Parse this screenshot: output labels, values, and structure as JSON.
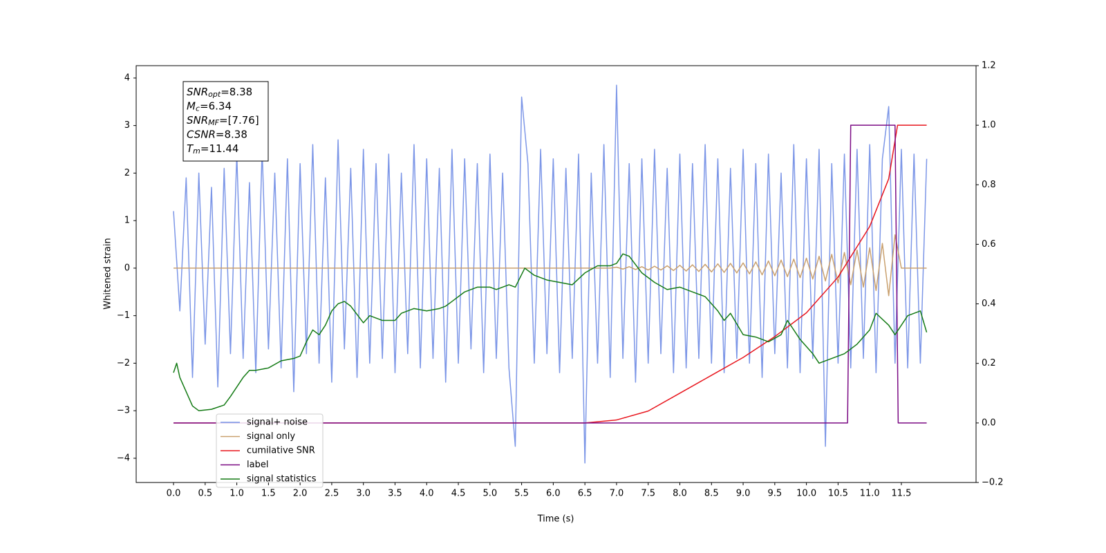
{
  "chart_data": {
    "type": "line",
    "xlabel": "Time (s)",
    "ylabel": "Whitened strain",
    "xlim": [
      -0.59,
      12.68
    ],
    "ylim": [
      -4.51,
      4.26
    ],
    "y2lim": [
      -0.2,
      1.2
    ],
    "xticks": [
      {
        "value": 0,
        "label": "0.0"
      },
      0.5,
      {
        "value": 1,
        "label": "1.0"
      },
      1.5,
      {
        "value": 2,
        "label": "2.0"
      },
      2.5,
      {
        "value": 3,
        "label": "3.0"
      },
      3.5,
      {
        "value": 4,
        "label": "4.0"
      },
      4.5,
      {
        "value": 5,
        "label": "5.0"
      },
      5.5,
      {
        "value": 6,
        "label": "6.0"
      },
      6.5,
      {
        "value": 7,
        "label": "7.0"
      },
      7.5,
      {
        "value": 8,
        "label": "8.0"
      },
      8.5,
      {
        "value": 9,
        "label": "9.0"
      },
      9.5,
      {
        "value": 10,
        "label": "10.0"
      },
      10.5,
      {
        "value": 11,
        "label": "11.0"
      },
      11.5
    ],
    "yticks": [
      {
        "value": -4,
        "label": "−4"
      },
      {
        "value": -3,
        "label": "−3"
      },
      {
        "value": -2,
        "label": "−2"
      },
      {
        "value": -1,
        "label": "−1"
      },
      0,
      1,
      2,
      3,
      4
    ],
    "y2ticks": [
      {
        "value": -0.2,
        "label": "−0.2"
      },
      {
        "value": 0,
        "label": "0.0"
      },
      0.2,
      0.4,
      0.6,
      0.8,
      {
        "value": 1,
        "label": "1.0"
      },
      1.2
    ],
    "annotation": [
      {
        "base": "SNR",
        "sub": "opt",
        "text": "=8.38"
      },
      {
        "base": "M",
        "sub": "c",
        "text": "=6.34"
      },
      {
        "base": "SNR",
        "sub": "MF",
        "text": "=[7.76]"
      },
      {
        "base": "CSNR",
        "sub": "",
        "text": "=8.38"
      },
      {
        "base": "T",
        "sub": "m",
        "text": "=11.44"
      }
    ],
    "x": [
      0,
      0.1,
      0.2,
      0.3,
      0.4,
      0.5,
      0.6,
      0.7,
      0.8,
      0.9,
      1,
      1.1,
      1.2,
      1.3,
      1.4,
      1.5,
      1.6,
      1.7,
      1.8,
      1.9,
      2,
      2.1,
      2.2,
      2.3,
      2.4,
      2.5,
      2.6,
      2.7,
      2.8,
      2.9,
      3,
      3.1,
      3.2,
      3.3,
      3.4,
      3.5,
      3.6,
      3.7,
      3.8,
      3.9,
      4,
      4.1,
      4.2,
      4.3,
      4.4,
      4.5,
      4.6,
      4.7,
      4.8,
      4.9,
      5,
      5.1,
      5.2,
      5.3,
      5.4,
      5.5,
      5.6,
      5.7,
      5.8,
      5.9,
      6,
      6.1,
      6.2,
      6.3,
      6.4,
      6.5,
      6.6,
      6.7,
      6.8,
      6.9,
      7,
      7.1,
      7.2,
      7.3,
      7.4,
      7.5,
      7.6,
      7.7,
      7.8,
      7.9,
      8,
      8.1,
      8.2,
      8.3,
      8.4,
      8.5,
      8.6,
      8.7,
      8.8,
      8.9,
      9,
      9.1,
      9.2,
      9.3,
      9.4,
      9.5,
      9.6,
      9.7,
      9.8,
      9.9,
      10,
      10.1,
      10.2,
      10.3,
      10.4,
      10.5,
      10.6,
      10.7,
      10.8,
      10.9,
      11,
      11.1,
      11.2,
      11.3,
      11.4,
      11.5,
      11.6,
      11.7,
      11.8,
      11.9
    ],
    "series": [
      {
        "name": "signal+ noise",
        "color": "#7590e6",
        "axis": "y",
        "values": [
          1.2,
          -0.9,
          1.9,
          -2.3,
          2.0,
          -1.6,
          1.7,
          -2.5,
          2.1,
          -1.8,
          2.4,
          -1.9,
          1.8,
          -2.2,
          2.5,
          -1.7,
          2.0,
          -2.1,
          2.3,
          -2.6,
          2.2,
          -1.8,
          2.6,
          -2.0,
          1.9,
          -2.4,
          2.7,
          -1.7,
          2.1,
          -2.3,
          2.5,
          -2.0,
          2.2,
          -1.9,
          2.4,
          -2.2,
          2.0,
          -1.8,
          2.6,
          -2.1,
          2.3,
          -1.9,
          2.1,
          -2.4,
          2.5,
          -2.0,
          2.3,
          -1.7,
          2.2,
          -2.2,
          2.4,
          -1.9,
          2.0,
          -2.1,
          -3.75,
          3.6,
          2.2,
          -2.0,
          2.5,
          -1.8,
          2.3,
          -2.2,
          2.1,
          -1.9,
          2.4,
          -4.1,
          2.0,
          -2.0,
          2.6,
          -2.3,
          3.85,
          -1.9,
          2.2,
          -2.4,
          2.3,
          -2.0,
          2.5,
          -1.8,
          2.1,
          -2.2,
          2.4,
          -2.1,
          2.2,
          -1.9,
          2.6,
          -2.0,
          2.3,
          -2.2,
          2.1,
          -1.9,
          2.5,
          -2.0,
          2.2,
          -2.3,
          2.4,
          -1.8,
          2.0,
          -2.1,
          2.6,
          -2.2,
          2.3,
          -1.9,
          2.5,
          -3.75,
          2.2,
          -2.0,
          2.4,
          -2.1,
          2.5,
          -1.9,
          2.6,
          -2.2,
          2.3,
          3.4,
          -2.0,
          2.5,
          -2.1,
          2.4,
          -2.0,
          2.3
        ]
      },
      {
        "name": "signal only",
        "color": "#c9a06e",
        "axis": "y",
        "values": [
          0,
          0,
          0,
          0,
          0,
          0,
          0,
          0,
          0,
          0,
          0,
          0,
          0,
          0,
          0,
          0,
          0,
          0,
          0,
          0,
          0,
          0,
          0,
          0,
          0,
          0,
          0,
          0,
          0,
          0,
          0,
          0,
          0,
          0,
          0,
          0,
          0,
          0,
          0,
          0,
          0,
          0,
          0,
          0,
          0,
          0,
          0,
          0,
          0,
          0,
          0,
          0,
          0,
          0,
          0,
          0,
          0,
          0,
          0,
          0,
          0,
          0,
          0,
          0,
          0,
          0,
          0,
          0,
          0,
          0,
          0.02,
          -0.02,
          0.03,
          -0.03,
          0.03,
          -0.04,
          0.04,
          -0.04,
          0.05,
          -0.05,
          0.06,
          -0.06,
          0.07,
          -0.07,
          0.08,
          -0.08,
          0.09,
          -0.09,
          0.1,
          -0.1,
          0.11,
          -0.12,
          0.13,
          -0.14,
          0.15,
          -0.16,
          0.17,
          -0.18,
          0.19,
          -0.2,
          0.21,
          -0.23,
          0.25,
          -0.27,
          0.29,
          -0.31,
          0.33,
          -0.35,
          0.38,
          -0.4,
          0.43,
          -0.47,
          0.52,
          -0.58,
          0.7,
          0,
          0,
          0,
          0,
          0
        ]
      },
      {
        "name": "cumilative SNR",
        "color": "#e8141c",
        "axis": "y2",
        "x": [
          0,
          6.5,
          7,
          7.5,
          8,
          8.5,
          9,
          9.5,
          10,
          10.5,
          11,
          11.3,
          11.44,
          11.9
        ],
        "values": [
          0,
          0,
          0.01,
          0.04,
          0.1,
          0.16,
          0.22,
          0.29,
          0.37,
          0.49,
          0.66,
          0.82,
          1.0,
          1.0
        ]
      },
      {
        "name": "label",
        "color": "#7b0a84",
        "axis": "y2",
        "x": [
          0,
          10.65,
          10.7,
          11.4,
          11.45,
          11.9
        ],
        "values": [
          0,
          0,
          1,
          1,
          0,
          0
        ]
      },
      {
        "name": "signal statistics",
        "color": "#137a14",
        "axis": "y",
        "x": [
          0,
          0.05,
          0.1,
          0.2,
          0.3,
          0.4,
          0.6,
          0.8,
          0.9,
          1,
          1.1,
          1.2,
          1.3,
          1.5,
          1.7,
          1.9,
          2,
          2.1,
          2.2,
          2.3,
          2.4,
          2.5,
          2.6,
          2.7,
          2.8,
          3,
          3.1,
          3.3,
          3.5,
          3.6,
          3.8,
          4,
          4.2,
          4.3,
          4.4,
          4.6,
          4.8,
          5,
          5.1,
          5.3,
          5.4,
          5.55,
          5.7,
          5.9,
          6.1,
          6.3,
          6.5,
          6.7,
          6.9,
          7,
          7.1,
          7.2,
          7.4,
          7.6,
          7.8,
          8,
          8.2,
          8.4,
          8.6,
          8.7,
          8.8,
          9,
          9.2,
          9.4,
          9.6,
          9.7,
          9.9,
          10.1,
          10.2,
          10.4,
          10.6,
          10.8,
          11,
          11.1,
          11.3,
          11.4,
          11.6,
          11.8,
          11.9
        ],
        "values": [
          -2.2,
          -2.0,
          -2.3,
          -2.6,
          -2.9,
          -3.0,
          -2.97,
          -2.88,
          -2.7,
          -2.5,
          -2.3,
          -2.15,
          -2.15,
          -2.1,
          -1.95,
          -1.9,
          -1.85,
          -1.55,
          -1.3,
          -1.4,
          -1.2,
          -0.9,
          -0.75,
          -0.7,
          -0.8,
          -1.15,
          -1.0,
          -1.1,
          -1.1,
          -0.95,
          -0.85,
          -0.9,
          -0.85,
          -0.8,
          -0.7,
          -0.5,
          -0.4,
          -0.4,
          -0.45,
          -0.35,
          -0.4,
          0.0,
          -0.15,
          -0.25,
          -0.3,
          -0.35,
          -0.1,
          0.05,
          0.05,
          0.1,
          0.3,
          0.25,
          -0.1,
          -0.3,
          -0.45,
          -0.4,
          -0.5,
          -0.6,
          -0.9,
          -1.1,
          -0.95,
          -1.4,
          -1.45,
          -1.55,
          -1.4,
          -1.1,
          -1.5,
          -1.8,
          -2.0,
          -1.9,
          -1.8,
          -1.6,
          -1.3,
          -0.95,
          -1.2,
          -1.4,
          -1.0,
          -0.9,
          -1.35
        ]
      }
    ]
  }
}
